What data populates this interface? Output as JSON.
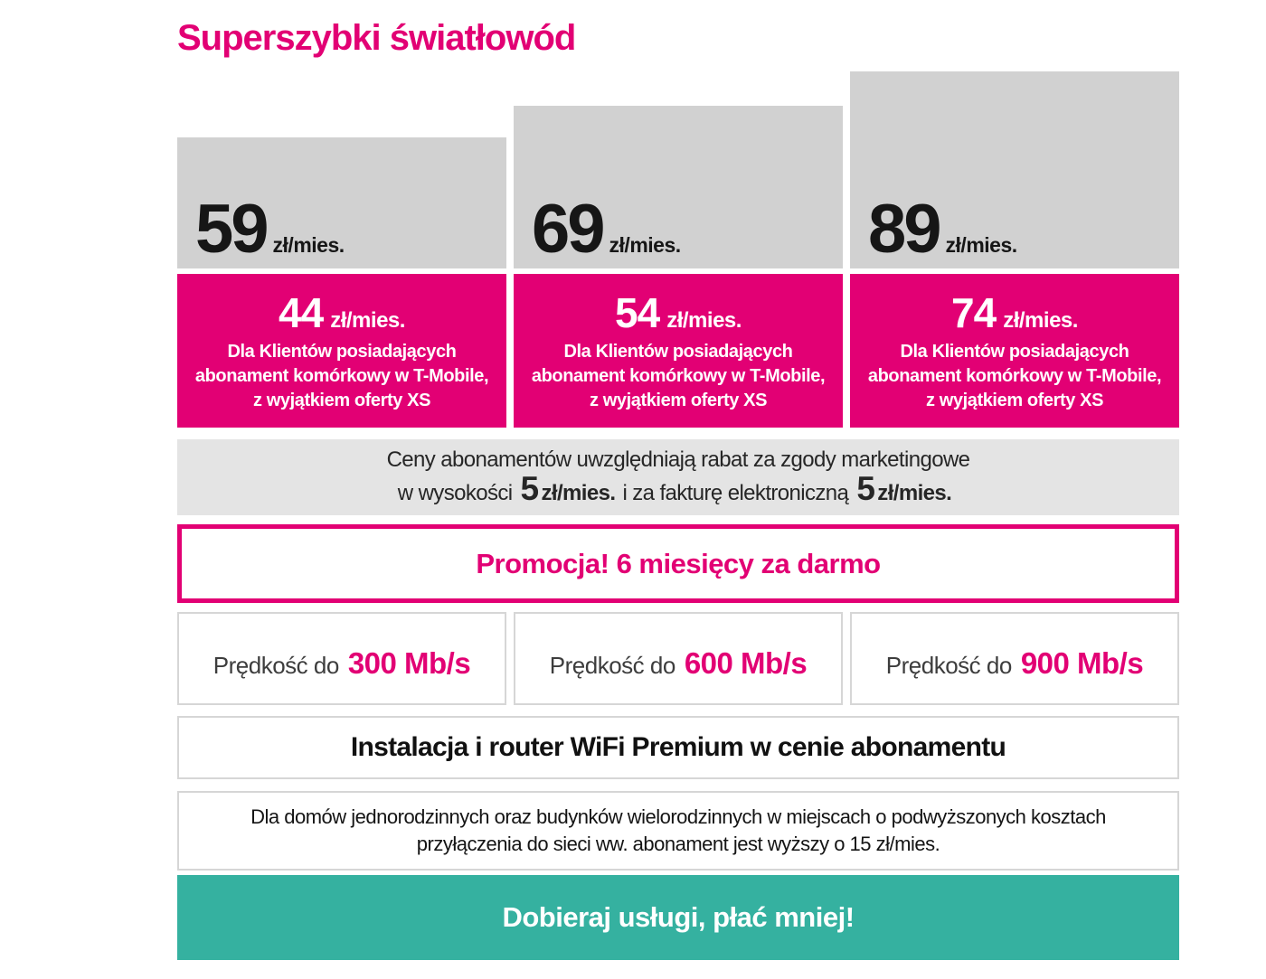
{
  "title": "Superszybki światłowód",
  "colors": {
    "brand_magenta": "#e20074",
    "card_gray": "#d1d1d1",
    "info_bar_gray": "#e4e4e4",
    "cta_teal": "#35b1a0",
    "box_border_gray": "#d6d6d6"
  },
  "plans": [
    {
      "standard_price": "59",
      "standard_unit": "zł/mies.",
      "promo_price": "44",
      "promo_unit": "zł/mies.",
      "note_line1": "Dla Klientów posiadających",
      "note_line2": "abonament komórkowy w T-Mobile,",
      "note_line3": "z wyjątkiem oferty XS",
      "speed_label": "Prędkość do",
      "speed_value": "300 Mb/s"
    },
    {
      "standard_price": "69",
      "standard_unit": "zł/mies.",
      "promo_price": "54",
      "promo_unit": "zł/mies.",
      "note_line1": "Dla Klientów posiadających",
      "note_line2": "abonament komórkowy w T-Mobile,",
      "note_line3": "z wyjątkiem oferty XS",
      "speed_label": "Prędkość do",
      "speed_value": "600 Mb/s"
    },
    {
      "standard_price": "89",
      "standard_unit": "zł/mies.",
      "promo_price": "74",
      "promo_unit": "zł/mies.",
      "note_line1": "Dla Klientów posiadających",
      "note_line2": "abonament komórkowy w T-Mobile,",
      "note_line3": "z wyjątkiem oferty XS",
      "speed_label": "Prędkość do",
      "speed_value": "900 Mb/s"
    }
  ],
  "discount_bar": {
    "line1": "Ceny abonamentów uwzględniają rabat za zgody marketingowe",
    "line2_prefix": "w wysokości",
    "line2_amount1": "5",
    "line2_unit1": "zł/mies.",
    "line2_middle": "i za fakturę elektroniczną",
    "line2_amount2": "5",
    "line2_unit2": "zł/mies."
  },
  "promo_banner": {
    "text": "Promocja! 6 miesięcy za darmo"
  },
  "install_banner": {
    "text": "Instalacja i router WiFi Premium w cenie abonamentu"
  },
  "surcharge_note": {
    "line1": "Dla domów jednorodzinnych oraz budynków wielorodzinnych w miejscach o podwyższonych kosztach",
    "line2": "przyłączenia do sieci ww. abonament jest wyższy o 15 zł/mies."
  },
  "cta_banner": {
    "text": "Dobieraj usługi, płać mniej!"
  }
}
